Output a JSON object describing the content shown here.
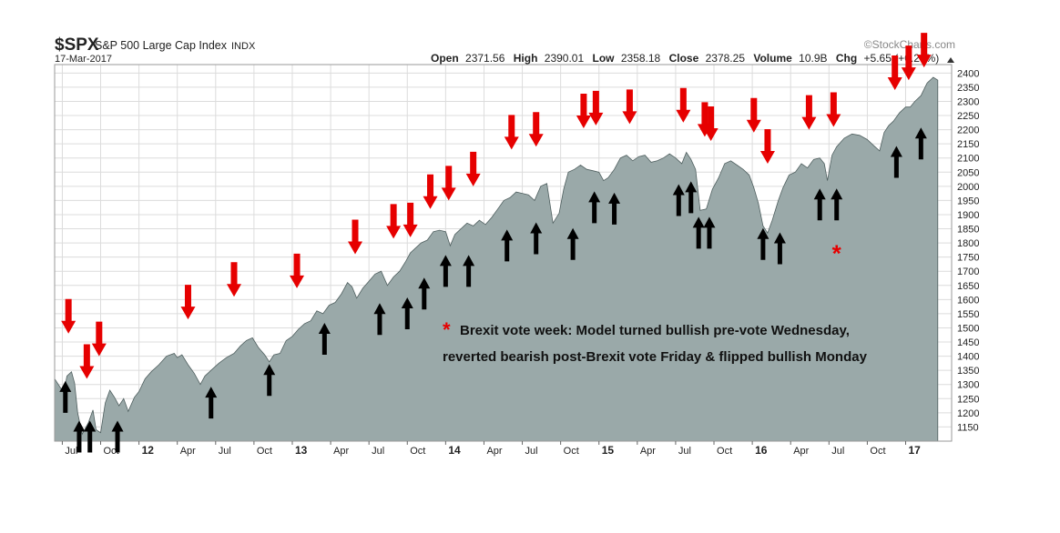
{
  "header": {
    "symbol": "$SPX",
    "name": "S&P 500 Large Cap Index",
    "exchange": "INDX",
    "watermark": "©StockCharts.com",
    "date": "17-Mar-2017",
    "open_label": "Open",
    "open": "2371.56",
    "high_label": "High",
    "high": "2390.01",
    "low_label": "Low",
    "low": "2358.18",
    "close_label": "Close",
    "close": "2378.25",
    "volume_label": "Volume",
    "volume": "10.9B",
    "chg_label": "Chg",
    "chg": "+5.65 (+0.24%)"
  },
  "annotation": {
    "asterisk": "*",
    "line1": "Brexit vote week: Model turned bullish pre-vote Wednesday,",
    "line2": "reverted bearish post-Brexit vote Friday & flipped bullish Monday"
  },
  "colors": {
    "area": "#9aa9a9",
    "area_stroke": "#4f5f5f",
    "sell_arrow": "#e60000",
    "buy_arrow": "#000000",
    "grid": "#dcdcdc",
    "frame": "#9a9a9a",
    "asterisk": "#e60000"
  },
  "chart_data": {
    "type": "area",
    "xlim": [
      2011.45,
      2017.3
    ],
    "ylim": [
      1100,
      2430
    ],
    "grid": true,
    "x_ticks": [
      {
        "x": 2011.5,
        "label": "Jul",
        "bold": false
      },
      {
        "x": 2011.75,
        "label": "Oct",
        "bold": false
      },
      {
        "x": 2012.0,
        "label": "12",
        "bold": true
      },
      {
        "x": 2012.25,
        "label": "Apr",
        "bold": false
      },
      {
        "x": 2012.5,
        "label": "Jul",
        "bold": false
      },
      {
        "x": 2012.75,
        "label": "Oct",
        "bold": false
      },
      {
        "x": 2013.0,
        "label": "13",
        "bold": true
      },
      {
        "x": 2013.25,
        "label": "Apr",
        "bold": false
      },
      {
        "x": 2013.5,
        "label": "Jul",
        "bold": false
      },
      {
        "x": 2013.75,
        "label": "Oct",
        "bold": false
      },
      {
        "x": 2014.0,
        "label": "14",
        "bold": true
      },
      {
        "x": 2014.25,
        "label": "Apr",
        "bold": false
      },
      {
        "x": 2014.5,
        "label": "Jul",
        "bold": false
      },
      {
        "x": 2014.75,
        "label": "Oct",
        "bold": false
      },
      {
        "x": 2015.0,
        "label": "15",
        "bold": true
      },
      {
        "x": 2015.25,
        "label": "Apr",
        "bold": false
      },
      {
        "x": 2015.5,
        "label": "Jul",
        "bold": false
      },
      {
        "x": 2015.75,
        "label": "Oct",
        "bold": false
      },
      {
        "x": 2016.0,
        "label": "16",
        "bold": true
      },
      {
        "x": 2016.25,
        "label": "Apr",
        "bold": false
      },
      {
        "x": 2016.5,
        "label": "Jul",
        "bold": false
      },
      {
        "x": 2016.75,
        "label": "Oct",
        "bold": false
      },
      {
        "x": 2017.0,
        "label": "17",
        "bold": true
      }
    ],
    "y_ticks": [
      1150,
      1200,
      1250,
      1300,
      1350,
      1400,
      1450,
      1500,
      1550,
      1600,
      1650,
      1700,
      1750,
      1800,
      1850,
      1900,
      1950,
      2000,
      2050,
      2100,
      2150,
      2200,
      2250,
      2300,
      2350,
      2400
    ],
    "series": [
      {
        "x": [
          2011.45,
          2011.48,
          2011.51,
          2011.53,
          2011.56,
          2011.58,
          2011.6,
          2011.63,
          2011.67,
          2011.7,
          2011.72,
          2011.75,
          2011.78,
          2011.81,
          2011.84,
          2011.87,
          2011.9,
          2011.93,
          2011.97,
          2012.0,
          2012.04,
          2012.08,
          2012.13,
          2012.18,
          2012.23,
          2012.25,
          2012.28,
          2012.32,
          2012.36,
          2012.4,
          2012.43,
          2012.47,
          2012.52,
          2012.57,
          2012.62,
          2012.66,
          2012.7,
          2012.74,
          2012.78,
          2012.82,
          2012.85,
          2012.88,
          2012.92,
          2012.96,
          2013.0,
          2013.04,
          2013.08,
          2013.12,
          2013.16,
          2013.2,
          2013.24,
          2013.28,
          2013.32,
          2013.36,
          2013.39,
          2013.42,
          2013.46,
          2013.5,
          2013.54,
          2013.58,
          2013.62,
          2013.66,
          2013.7,
          2013.74,
          2013.77,
          2013.8,
          2013.84,
          2013.88,
          2013.92,
          2013.96,
          2014.0,
          2014.03,
          2014.06,
          2014.1,
          2014.14,
          2014.18,
          2014.22,
          2014.26,
          2014.3,
          2014.34,
          2014.38,
          2014.42,
          2014.46,
          2014.5,
          2014.54,
          2014.58,
          2014.62,
          2014.66,
          2014.7,
          2014.74,
          2014.77,
          2014.8,
          2014.84,
          2014.88,
          2014.92,
          2014.96,
          2015.0,
          2015.03,
          2015.06,
          2015.1,
          2015.14,
          2015.18,
          2015.22,
          2015.26,
          2015.3,
          2015.34,
          2015.38,
          2015.42,
          2015.46,
          2015.5,
          2015.54,
          2015.57,
          2015.6,
          2015.63,
          2015.66,
          2015.7,
          2015.74,
          2015.78,
          2015.82,
          2015.86,
          2015.9,
          2015.94,
          2015.98,
          2016.01,
          2016.04,
          2016.07,
          2016.1,
          2016.13,
          2016.17,
          2016.2,
          2016.24,
          2016.28,
          2016.32,
          2016.36,
          2016.4,
          2016.44,
          2016.47,
          2016.49,
          2016.52,
          2016.55,
          2016.6,
          2016.65,
          2016.7,
          2016.75,
          2016.8,
          2016.83,
          2016.86,
          2016.89,
          2016.92,
          2016.96,
          2017.0,
          2017.03,
          2017.06,
          2017.1,
          2017.14,
          2017.18,
          2017.21
        ],
        "y": [
          1320,
          1295,
          1270,
          1330,
          1345,
          1305,
          1200,
          1125,
          1165,
          1210,
          1140,
          1130,
          1235,
          1280,
          1255,
          1225,
          1250,
          1205,
          1255,
          1275,
          1320,
          1345,
          1370,
          1400,
          1410,
          1395,
          1405,
          1370,
          1340,
          1300,
          1330,
          1350,
          1375,
          1395,
          1410,
          1435,
          1455,
          1465,
          1430,
          1405,
          1380,
          1405,
          1410,
          1455,
          1470,
          1495,
          1515,
          1525,
          1560,
          1550,
          1580,
          1590,
          1620,
          1660,
          1645,
          1605,
          1640,
          1665,
          1690,
          1700,
          1650,
          1680,
          1700,
          1735,
          1765,
          1780,
          1800,
          1810,
          1840,
          1845,
          1840,
          1790,
          1830,
          1850,
          1870,
          1860,
          1880,
          1865,
          1890,
          1920,
          1950,
          1960,
          1980,
          1975,
          1970,
          1950,
          2000,
          2010,
          1870,
          1905,
          1990,
          2050,
          2060,
          2075,
          2060,
          2055,
          2050,
          2020,
          2030,
          2060,
          2100,
          2110,
          2090,
          2105,
          2110,
          2085,
          2090,
          2100,
          2115,
          2100,
          2080,
          2120,
          2095,
          2060,
          1915,
          1920,
          1990,
          2030,
          2080,
          2090,
          2075,
          2060,
          2040,
          1995,
          1940,
          1860,
          1835,
          1880,
          1950,
          1995,
          2040,
          2050,
          2080,
          2065,
          2095,
          2100,
          2080,
          2020,
          2110,
          2140,
          2170,
          2185,
          2180,
          2165,
          2140,
          2125,
          2190,
          2215,
          2230,
          2260,
          2280,
          2280,
          2300,
          2320,
          2365,
          2385,
          2375
        ]
      }
    ],
    "sell_signals": [
      {
        "x": 2011.54,
        "y": 1480
      },
      {
        "x": 2011.66,
        "y": 1320
      },
      {
        "x": 2011.74,
        "y": 1400
      },
      {
        "x": 2012.32,
        "y": 1530
      },
      {
        "x": 2012.62,
        "y": 1610
      },
      {
        "x": 2013.03,
        "y": 1640
      },
      {
        "x": 2013.41,
        "y": 1760
      },
      {
        "x": 2013.66,
        "y": 1815
      },
      {
        "x": 2013.77,
        "y": 1820
      },
      {
        "x": 2013.9,
        "y": 1920
      },
      {
        "x": 2014.02,
        "y": 1950
      },
      {
        "x": 2014.18,
        "y": 2000
      },
      {
        "x": 2014.43,
        "y": 2130
      },
      {
        "x": 2014.59,
        "y": 2140
      },
      {
        "x": 2014.9,
        "y": 2205
      },
      {
        "x": 2014.98,
        "y": 2215
      },
      {
        "x": 2015.2,
        "y": 2220
      },
      {
        "x": 2015.55,
        "y": 2225
      },
      {
        "x": 2015.69,
        "y": 2175
      },
      {
        "x": 2015.73,
        "y": 2160
      },
      {
        "x": 2016.01,
        "y": 2190
      },
      {
        "x": 2016.1,
        "y": 2080
      },
      {
        "x": 2016.37,
        "y": 2200
      },
      {
        "x": 2016.53,
        "y": 2210
      },
      {
        "x": 2016.93,
        "y": 2340
      },
      {
        "x": 2017.02,
        "y": 2375
      },
      {
        "x": 2017.12,
        "y": 2420
      }
    ],
    "buy_signals": [
      {
        "x": 2011.52,
        "y": 1200
      },
      {
        "x": 2011.61,
        "y": 1060
      },
      {
        "x": 2011.68,
        "y": 1060
      },
      {
        "x": 2011.86,
        "y": 1060
      },
      {
        "x": 2012.47,
        "y": 1180
      },
      {
        "x": 2012.85,
        "y": 1260
      },
      {
        "x": 2013.21,
        "y": 1405
      },
      {
        "x": 2013.57,
        "y": 1475
      },
      {
        "x": 2013.75,
        "y": 1495
      },
      {
        "x": 2013.86,
        "y": 1565
      },
      {
        "x": 2014.0,
        "y": 1645
      },
      {
        "x": 2014.15,
        "y": 1645
      },
      {
        "x": 2014.4,
        "y": 1735
      },
      {
        "x": 2014.59,
        "y": 1760
      },
      {
        "x": 2014.83,
        "y": 1740
      },
      {
        "x": 2014.97,
        "y": 1870
      },
      {
        "x": 2015.1,
        "y": 1865
      },
      {
        "x": 2015.52,
        "y": 1895
      },
      {
        "x": 2015.6,
        "y": 1905
      },
      {
        "x": 2015.65,
        "y": 1780
      },
      {
        "x": 2015.72,
        "y": 1780
      },
      {
        "x": 2016.07,
        "y": 1740
      },
      {
        "x": 2016.18,
        "y": 1725
      },
      {
        "x": 2016.44,
        "y": 1880
      },
      {
        "x": 2016.55,
        "y": 1880
      },
      {
        "x": 2016.94,
        "y": 2030
      },
      {
        "x": 2017.1,
        "y": 2095
      }
    ],
    "asterisk_point": {
      "x": 2016.55,
      "y": 1780
    }
  }
}
